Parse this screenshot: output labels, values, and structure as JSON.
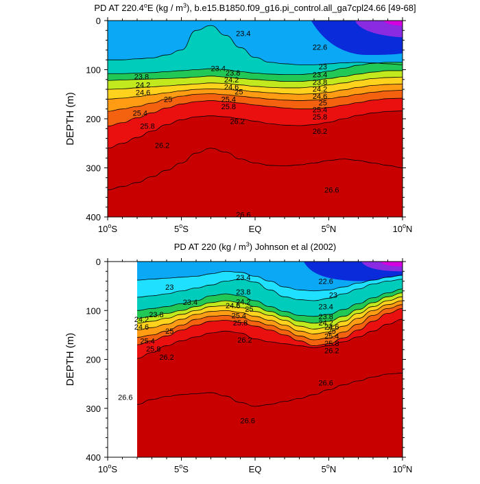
{
  "chart_data": [
    {
      "type": "contour",
      "title": "PD AT 220.4°E (kg / m³), b.e15.B1850.f09_g16.pi_control.all_ga7cpl24.66 [49-68]",
      "title_parts": {
        "pre": "PD AT 220.4",
        "deg": "o",
        "mid": "E (kg / m",
        "sup": "3",
        "post": "), b.e15.B1850.f09_g16.pi_control.all_ga7cpl24.66 [49-68]"
      },
      "ylabel": "DEPTH (m)",
      "x_ticks": [
        "10°S",
        "5°S",
        "EQ",
        "5°N",
        "10°N"
      ],
      "x_tick_parts": [
        {
          "n": "10",
          "o": "o",
          "l": "S"
        },
        {
          "n": "5",
          "o": "o",
          "l": "S"
        },
        {
          "n": "EQ",
          "o": "",
          "l": ""
        },
        {
          "n": "5",
          "o": "o",
          "l": "N"
        },
        {
          "n": "10",
          "o": "o",
          "l": "N"
        }
      ],
      "y_ticks": [
        "0",
        "100",
        "200",
        "300",
        "400"
      ],
      "xlim": [
        -10,
        10
      ],
      "ylim": [
        400,
        0
      ],
      "data_start": -10,
      "levels": [
        22.6,
        23,
        23.4,
        23.8,
        24.2,
        24.6,
        25,
        25.4,
        25.8,
        26.2,
        26.6
      ],
      "isopycnals": [
        {
          "level": 23.4,
          "depth": [
            80,
            80,
            78,
            76,
            70,
            60,
            20,
            10,
            30,
            55,
            75,
            85,
            88,
            90,
            90,
            88,
            86,
            85,
            86,
            88,
            90
          ]
        },
        {
          "level": 23.8,
          "depth": [
            108,
            108,
            107,
            106,
            104,
            102,
            100,
            98,
            100,
            104,
            107,
            109,
            110,
            110,
            108,
            103,
            97,
            91,
            87,
            85,
            85
          ]
        },
        {
          "level": 24.2,
          "depth": [
            122,
            121,
            120,
            119,
            118,
            117,
            115,
            113,
            115,
            118,
            120,
            122,
            124,
            124,
            122,
            118,
            114,
            109,
            105,
            102,
            102
          ]
        },
        {
          "level": 24.6,
          "depth": [
            140,
            139,
            137,
            135,
            133,
            131,
            129,
            127,
            128,
            131,
            134,
            136,
            137,
            137,
            135,
            131,
            127,
            122,
            118,
            116,
            115
          ]
        },
        {
          "level": 25,
          "depth": [
            160,
            158,
            155,
            151,
            147,
            143,
            140,
            139,
            140,
            142,
            145,
            147,
            149,
            150,
            149,
            146,
            141,
            136,
            132,
            130,
            129
          ]
        },
        {
          "level": 25.4,
          "depth": [
            185,
            180,
            175,
            168,
            160,
            154,
            150,
            149,
            151,
            154,
            157,
            160,
            162,
            163,
            162,
            159,
            155,
            150,
            146,
            143,
            142
          ]
        },
        {
          "level": 25.8,
          "depth": [
            215,
            208,
            198,
            188,
            178,
            170,
            165,
            163,
            165,
            168,
            172,
            175,
            178,
            180,
            180,
            177,
            172,
            167,
            162,
            159,
            158
          ]
        },
        {
          "level": 26.2,
          "depth": [
            260,
            250,
            238,
            225,
            212,
            202,
            196,
            194,
            196,
            200,
            205,
            210,
            213,
            214,
            212,
            207,
            200,
            193,
            188,
            185,
            184
          ]
        },
        {
          "level": 26.6,
          "depth": [
            345,
            338,
            330,
            318,
            305,
            290,
            270,
            260,
            268,
            282,
            290,
            295,
            296,
            294,
            290,
            285,
            282,
            285,
            290,
            295,
            300
          ]
        }
      ],
      "labels": [
        {
          "text": "23.4",
          "x": -2.5,
          "depth": 97
        },
        {
          "text": "23.8",
          "x": -7.7,
          "depth": 114
        },
        {
          "text": "24.2",
          "x": -7.6,
          "depth": 131
        },
        {
          "text": "24.6",
          "x": -7.6,
          "depth": 146
        },
        {
          "text": "25",
          "x": -5.9,
          "depth": 160
        },
        {
          "text": "25.4",
          "x": -7.8,
          "depth": 188
        },
        {
          "text": "25.8",
          "x": -7.3,
          "depth": 215
        },
        {
          "text": "26.2",
          "x": -6.3,
          "depth": 254
        },
        {
          "text": "23.4",
          "x": -0.8,
          "depth": 26
        },
        {
          "text": "23.8",
          "x": -1.5,
          "depth": 106
        },
        {
          "text": "24.2",
          "x": -1.6,
          "depth": 120
        },
        {
          "text": "24.6",
          "x": -1.6,
          "depth": 135
        },
        {
          "text": "25",
          "x": -1.1,
          "depth": 145
        },
        {
          "text": "25.4",
          "x": -1.8,
          "depth": 160
        },
        {
          "text": "25.8",
          "x": -1.8,
          "depth": 175
        },
        {
          "text": "26.2",
          "x": -1.2,
          "depth": 205
        },
        {
          "text": "22.6",
          "x": 4.4,
          "depth": 54
        },
        {
          "text": "23",
          "x": 4.6,
          "depth": 94
        },
        {
          "text": "23.4",
          "x": 4.4,
          "depth": 110
        },
        {
          "text": "23.8",
          "x": 4.4,
          "depth": 125
        },
        {
          "text": "24.2",
          "x": 4.4,
          "depth": 139
        },
        {
          "text": "24.6",
          "x": 4.4,
          "depth": 154
        },
        {
          "text": "25",
          "x": 4.6,
          "depth": 167
        },
        {
          "text": "25.4",
          "x": 4.4,
          "depth": 181
        },
        {
          "text": "25.8",
          "x": 4.4,
          "depth": 196
        },
        {
          "text": "26.2",
          "x": 4.4,
          "depth": 225
        },
        {
          "text": "26.6",
          "x": 5.2,
          "depth": 345
        },
        {
          "text": "26.6",
          "x": -0.8,
          "depth": 395
        }
      ]
    },
    {
      "type": "contour",
      "title": "PD AT 220 (kg / m³) Johnson et al (2002)",
      "title_parts": {
        "pre": "PD AT 220 (kg / m",
        "deg": "",
        "mid": "",
        "sup": "3",
        "post": ") Johnson et al (2002)"
      },
      "ylabel": "DEPTH (m)",
      "x_ticks": [
        "10°S",
        "5°S",
        "EQ",
        "5°N",
        "10°N"
      ],
      "x_tick_parts": [
        {
          "n": "10",
          "o": "o",
          "l": "S"
        },
        {
          "n": "5",
          "o": "o",
          "l": "S"
        },
        {
          "n": "EQ",
          "o": "",
          "l": ""
        },
        {
          "n": "5",
          "o": "o",
          "l": "N"
        },
        {
          "n": "10",
          "o": "o",
          "l": "N"
        }
      ],
      "y_ticks": [
        "0",
        "100",
        "200",
        "300",
        "400"
      ],
      "xlim": [
        -10,
        10
      ],
      "ylim": [
        400,
        0
      ],
      "data_start": -8,
      "levels": [
        22.6,
        23,
        23.4,
        23.8,
        24.2,
        24.6,
        25,
        25.4,
        25.8,
        26.2,
        26.6
      ],
      "isopycnals": [
        {
          "level": 23,
          "depth": [
            40,
            40,
            38,
            36,
            34,
            32,
            30,
            25,
            20,
            22,
            30,
            40,
            52,
            58,
            60,
            58,
            52,
            44,
            38,
            32,
            28
          ]
        },
        {
          "level": 23.4,
          "depth": [
            75,
            75,
            73,
            70,
            66,
            60,
            54,
            48,
            40,
            36,
            42,
            58,
            72,
            78,
            80,
            75,
            66,
            56,
            46,
            40,
            36
          ]
        },
        {
          "level": 23.8,
          "depth": [
            103,
            103,
            100,
            96,
            92,
            86,
            80,
            70,
            66,
            70,
            80,
            92,
            102,
            110,
            112,
            108,
            98,
            86,
            74,
            64,
            56
          ]
        },
        {
          "level": 24.2,
          "depth": [
            118,
            118,
            116,
            112,
            106,
            100,
            92,
            84,
            80,
            84,
            92,
            102,
            112,
            122,
            126,
            122,
            112,
            98,
            84,
            72,
            64
          ]
        },
        {
          "level": 24.6,
          "depth": [
            128,
            128,
            126,
            122,
            116,
            108,
            100,
            92,
            90,
            94,
            102,
            110,
            120,
            132,
            138,
            134,
            122,
            106,
            92,
            80,
            72
          ]
        },
        {
          "level": 25,
          "depth": [
            142,
            142,
            140,
            135,
            128,
            118,
            108,
            102,
            100,
            104,
            112,
            120,
            130,
            142,
            148,
            144,
            132,
            116,
            100,
            88,
            80
          ]
        },
        {
          "level": 25.4,
          "depth": [
            158,
            158,
            155,
            150,
            142,
            130,
            118,
            112,
            110,
            114,
            122,
            130,
            140,
            152,
            160,
            156,
            144,
            128,
            110,
            96,
            88
          ]
        },
        {
          "level": 25.8,
          "depth": [
            175,
            175,
            170,
            162,
            152,
            140,
            130,
            122,
            120,
            124,
            132,
            140,
            150,
            162,
            172,
            168,
            156,
            140,
            122,
            106,
            96
          ]
        },
        {
          "level": 26.2,
          "depth": [
            205,
            205,
            198,
            186,
            172,
            162,
            154,
            146,
            142,
            146,
            158,
            164,
            168,
            172,
            176,
            172,
            164,
            154,
            142,
            128,
            118
          ]
        },
        {
          "level": 26.6,
          "depth": [
            300,
            300,
            292,
            282,
            276,
            272,
            270,
            268,
            275,
            288,
            296,
            292,
            286,
            280,
            272,
            262,
            252,
            244,
            236,
            230,
            228
          ]
        }
      ],
      "labels": [
        {
          "text": "23",
          "x": -5.8,
          "depth": 52
        },
        {
          "text": "23.4",
          "x": -4.4,
          "depth": 83
        },
        {
          "text": "23.8",
          "x": -6.7,
          "depth": 108
        },
        {
          "text": "24.2",
          "x": -7.7,
          "depth": 118
        },
        {
          "text": "24.6",
          "x": -7.7,
          "depth": 133
        },
        {
          "text": "25",
          "x": -5.8,
          "depth": 142
        },
        {
          "text": "25.4",
          "x": -7.3,
          "depth": 162
        },
        {
          "text": "25.8",
          "x": -6.9,
          "depth": 178
        },
        {
          "text": "26.2",
          "x": -6.0,
          "depth": 195
        },
        {
          "text": "23.4",
          "x": -0.8,
          "depth": 32
        },
        {
          "text": "23.8",
          "x": -0.8,
          "depth": 62
        },
        {
          "text": "24.2",
          "x": -0.8,
          "depth": 82
        },
        {
          "text": "24.6",
          "x": -1.5,
          "depth": 90
        },
        {
          "text": "25",
          "x": -0.4,
          "depth": 97
        },
        {
          "text": "25.4",
          "x": -1.1,
          "depth": 110
        },
        {
          "text": "25.8",
          "x": -1.0,
          "depth": 125
        },
        {
          "text": "26.2",
          "x": -0.7,
          "depth": 160
        },
        {
          "text": "22.6",
          "x": 4.8,
          "depth": 40
        },
        {
          "text": "23",
          "x": 5.3,
          "depth": 68
        },
        {
          "text": "23.4",
          "x": 4.8,
          "depth": 92
        },
        {
          "text": "23.8",
          "x": 4.8,
          "depth": 112
        },
        {
          "text": "24.2",
          "x": 4.8,
          "depth": 125
        },
        {
          "text": "24.6",
          "x": 5.2,
          "depth": 133
        },
        {
          "text": "25",
          "x": 5.2,
          "depth": 142
        },
        {
          "text": "25.4",
          "x": 5.2,
          "depth": 152
        },
        {
          "text": "25.8",
          "x": 5.2,
          "depth": 167
        },
        {
          "text": "26.2",
          "x": 5.2,
          "depth": 182
        },
        {
          "text": "26.6",
          "x": 4.8,
          "depth": 248
        },
        {
          "text": "26.6",
          "x": -8.8,
          "depth": 277
        },
        {
          "text": "26.6",
          "x": -0.5,
          "depth": 325
        }
      ]
    }
  ],
  "colors": {
    "band_below_22.6": "#8a2be2",
    "band_22.6_23": "#0a2bd9",
    "band_23_23.4": "#0aa8f5",
    "band_23.4_23.8": "#20e0ff",
    "band_23.8_24.2": "#00ccbb",
    "band_24.2_24.6": "#22c855",
    "band_24.6_25": "#c2e81e",
    "band_25_25.4": "#ffd21e",
    "band_25.4_25.8": "#ff9c14",
    "band_25.8_26.2": "#f5620f",
    "band_26.2_26.6": "#eb1010",
    "band_above_26.6": "#c80000",
    "purple_core": "#d400e0"
  }
}
